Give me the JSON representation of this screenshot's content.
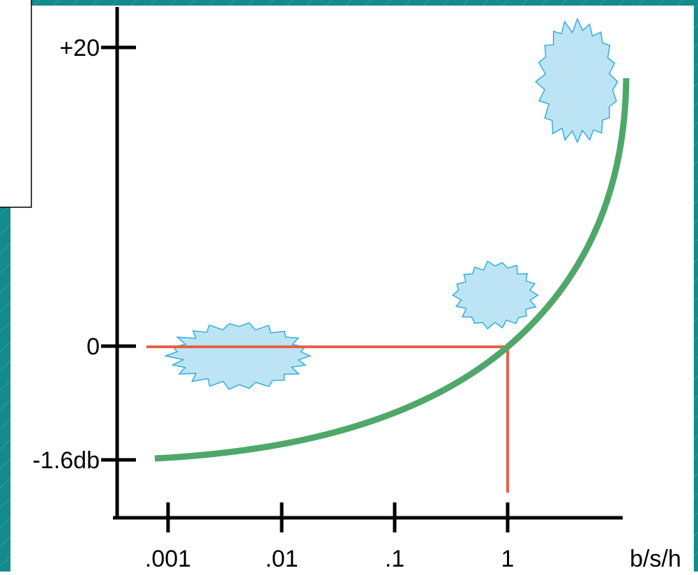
{
  "y_axis": {
    "ticks": [
      "+20",
      "0",
      "-1.6db"
    ]
  },
  "x_axis": {
    "ticks": [
      ".001",
      ".01",
      ".1",
      "1"
    ],
    "unit": "b/s/h"
  }
}
